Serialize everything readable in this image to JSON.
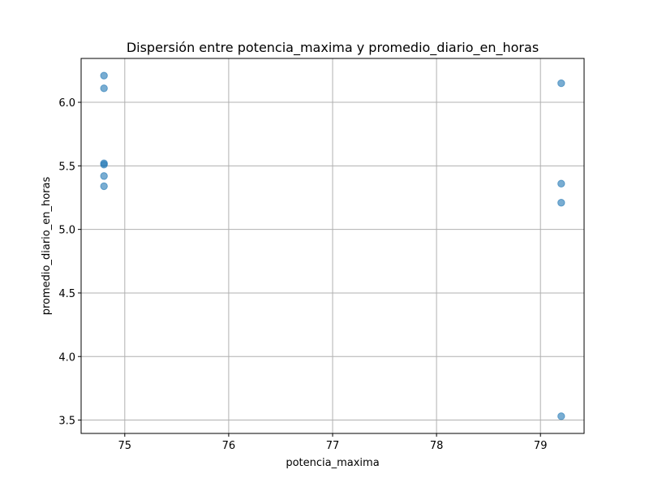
{
  "chart_data": {
    "type": "scatter",
    "title": "Dispersión entre potencia_maxima y promedio_diario_en_horas",
    "xlabel": "potencia_maxima",
    "ylabel": "promedio_diario_en_horas",
    "xlim": [
      74.58,
      79.42
    ],
    "ylim": [
      3.395,
      6.345
    ],
    "xticks": [
      75,
      76,
      77,
      78,
      79
    ],
    "yticks": [
      3.5,
      4.0,
      4.5,
      5.0,
      5.5,
      6.0
    ],
    "xtick_labels": [
      "75",
      "76",
      "77",
      "78",
      "79"
    ],
    "ytick_labels": [
      "3.5",
      "4.0",
      "4.5",
      "5.0",
      "5.5",
      "6.0"
    ],
    "grid": true,
    "points": [
      {
        "x": 74.8,
        "y": 6.21
      },
      {
        "x": 74.8,
        "y": 6.11
      },
      {
        "x": 74.8,
        "y": 5.52
      },
      {
        "x": 74.8,
        "y": 5.51
      },
      {
        "x": 74.8,
        "y": 5.42
      },
      {
        "x": 74.8,
        "y": 5.34
      },
      {
        "x": 79.2,
        "y": 6.15
      },
      {
        "x": 79.2,
        "y": 5.36
      },
      {
        "x": 79.2,
        "y": 5.21
      },
      {
        "x": 79.2,
        "y": 3.53
      }
    ],
    "colors": {
      "marker": "#1f77b4",
      "grid": "#b0b0b0"
    }
  }
}
